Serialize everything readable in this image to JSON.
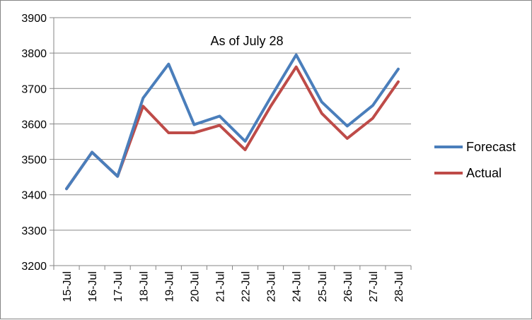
{
  "chart_data": {
    "type": "line",
    "title": "As of July 28",
    "xlabel": "",
    "ylabel": "",
    "categories": [
      "15-Jul",
      "16-Jul",
      "17-Jul",
      "18-Jul",
      "19-Jul",
      "20-Jul",
      "21-Jul",
      "22-Jul",
      "23-Jul",
      "24-Jul",
      "25-Jul",
      "26-Jul",
      "27-Jul",
      "28-Jul"
    ],
    "ylim": [
      3200,
      3900
    ],
    "yticks": [
      "3200",
      "3300",
      "3400",
      "3500",
      "3600",
      "3700",
      "3800",
      "3900"
    ],
    "grid": true,
    "legend_position": "right",
    "series": [
      {
        "name": "Forecast",
        "color": "#4A7EBB",
        "values": [
          3417,
          3520,
          3452,
          3673,
          3769,
          3598,
          3622,
          3551,
          3675,
          3795,
          3662,
          3594,
          3652,
          3755
        ]
      },
      {
        "name": "Actual",
        "color": "#BE4B48",
        "values": [
          3417,
          3520,
          3452,
          3650,
          3575,
          3575,
          3596,
          3527,
          3650,
          3761,
          3630,
          3559,
          3616,
          3719
        ]
      }
    ]
  }
}
